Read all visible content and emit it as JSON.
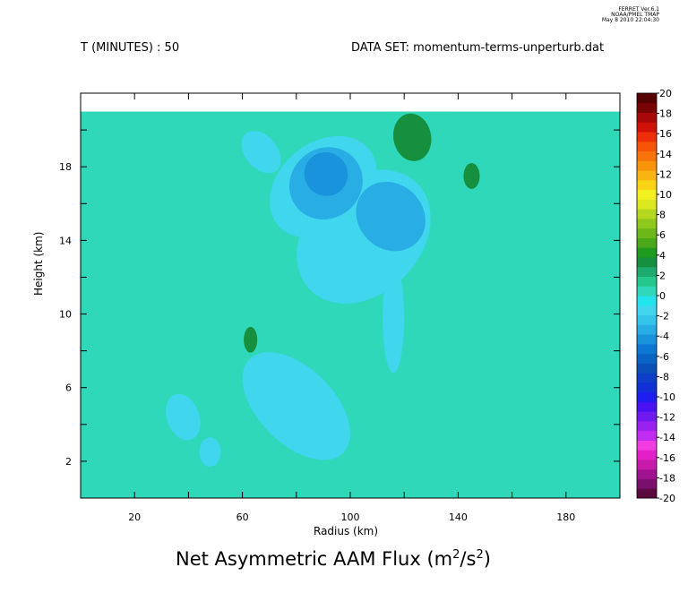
{
  "meta": {
    "program": "FERRET  Ver.6.1",
    "org": "NOAA/PMEL TMAP",
    "date": "May  8 2010 22:04:30"
  },
  "header": {
    "time_label": "T (MINUTES) : 50",
    "dataset_label": "DATA SET: momentum-terms-unperturb.dat"
  },
  "chart_data": {
    "type": "heatmap",
    "title": "Net Asymmetric AAM Flux (m",
    "title_units_exp": "2",
    "title_units_mid": "/s",
    "title_units_close": ")",
    "xlabel": "Radius (km)",
    "ylabel": "Height (km)",
    "xlim": [
      0,
      200
    ],
    "ylim": [
      0,
      22
    ],
    "data_top": 21,
    "x_ticks": [
      20,
      60,
      100,
      140,
      180
    ],
    "y_ticks": [
      2,
      6,
      10,
      14,
      18
    ],
    "grid": false,
    "background_value": 0,
    "colorbar": {
      "levels": [
        -20,
        -18,
        -16,
        -14,
        -12,
        -10,
        -8,
        -6,
        -4,
        -2,
        0,
        2,
        4,
        6,
        8,
        10,
        12,
        14,
        16,
        18,
        20
      ],
      "label_levels": [
        20,
        18,
        16,
        14,
        12,
        10,
        8,
        6,
        4,
        2,
        0,
        -2,
        -4,
        -6,
        -8,
        -10,
        -12,
        -14,
        -16,
        -18,
        -20
      ],
      "colors": [
        "#5a0a3c",
        "#7a0f6e",
        "#a0128f",
        "#c81aa8",
        "#e41fc8",
        "#f03ce0",
        "#c02cf0",
        "#9a22f0",
        "#6e1af0",
        "#4a12f0",
        "#1e1ef0",
        "#1230d8",
        "#0e3fc8",
        "#0b50b8",
        "#0a64c6",
        "#0d78d4",
        "#1994dc",
        "#28aee4",
        "#34c6ea",
        "#3fd6ee",
        "#22e4ec",
        "#2fd8b8",
        "#24c88c",
        "#1eac6e",
        "#16903e",
        "#1e9a1e",
        "#4aa81a",
        "#6cb818",
        "#8ec81a",
        "#b4d81e",
        "#dce81e",
        "#f4f020",
        "#f8d414",
        "#f8b410",
        "#f8940c",
        "#f8740a",
        "#f85408",
        "#ee2e08",
        "#d01208",
        "#a80808",
        "#7a0404",
        "#560202"
      ]
    },
    "regions": [
      {
        "value": 0.8,
        "center": [
          50,
          16.2
        ],
        "radii": [
          16,
          3.2
        ],
        "rotation": -40
      },
      {
        "value": 0.8,
        "center": [
          62,
          10.5
        ],
        "radii": [
          10,
          5.5
        ],
        "rotation": -60
      },
      {
        "value": 0.8,
        "center": [
          126,
          19.8
        ],
        "radii": [
          14,
          2.0
        ],
        "rotation": -10
      },
      {
        "value": 0.8,
        "center": [
          144,
          17.8
        ],
        "radii": [
          10,
          2.2
        ],
        "rotation": 0
      },
      {
        "value": 0.8,
        "center": [
          25,
          2.9
        ],
        "radii": [
          9,
          1.8
        ],
        "rotation": 0
      },
      {
        "value": 0.8,
        "center": [
          86,
          2.0
        ],
        "radii": [
          6,
          1.0
        ],
        "rotation": 0
      },
      {
        "value": 3.0,
        "center": [
          123,
          19.6
        ],
        "radii": [
          7,
          1.3
        ],
        "rotation": -10
      },
      {
        "value": 3.0,
        "center": [
          63,
          8.6
        ],
        "radii": [
          2.5,
          0.7
        ],
        "rotation": 0
      },
      {
        "value": 3.0,
        "center": [
          145,
          17.5
        ],
        "radii": [
          3,
          0.7
        ],
        "rotation": 0
      },
      {
        "value": -1.0,
        "center": [
          90,
          16.9
        ],
        "radii": [
          22,
          2.4
        ],
        "rotation": -40
      },
      {
        "value": -1.0,
        "center": [
          105,
          14.2
        ],
        "radii": [
          28,
          3.1
        ],
        "rotation": -45
      },
      {
        "value": -1.0,
        "center": [
          80,
          5.0
        ],
        "radii": [
          14,
          3.6
        ],
        "rotation": -45
      },
      {
        "value": -1.0,
        "center": [
          38,
          4.4
        ],
        "radii": [
          6,
          1.3
        ],
        "rotation": -20
      },
      {
        "value": -1.0,
        "center": [
          48,
          2.5
        ],
        "radii": [
          4,
          0.8
        ],
        "rotation": 0
      },
      {
        "value": -1.0,
        "center": [
          116,
          9.8
        ],
        "radii": [
          4,
          3.0
        ],
        "rotation": 0
      },
      {
        "value": -1.0,
        "center": [
          67,
          18.8
        ],
        "radii": [
          6,
          1.3
        ],
        "rotation": -40
      },
      {
        "value": -3.0,
        "center": [
          91,
          17.1
        ],
        "radii": [
          14,
          1.9
        ],
        "rotation": -40
      },
      {
        "value": -3.0,
        "center": [
          115,
          15.3
        ],
        "radii": [
          12,
          2.0
        ],
        "rotation": -45
      },
      {
        "value": -4.5,
        "center": [
          91,
          17.6
        ],
        "radii": [
          8,
          1.2
        ],
        "rotation": -40
      }
    ]
  }
}
